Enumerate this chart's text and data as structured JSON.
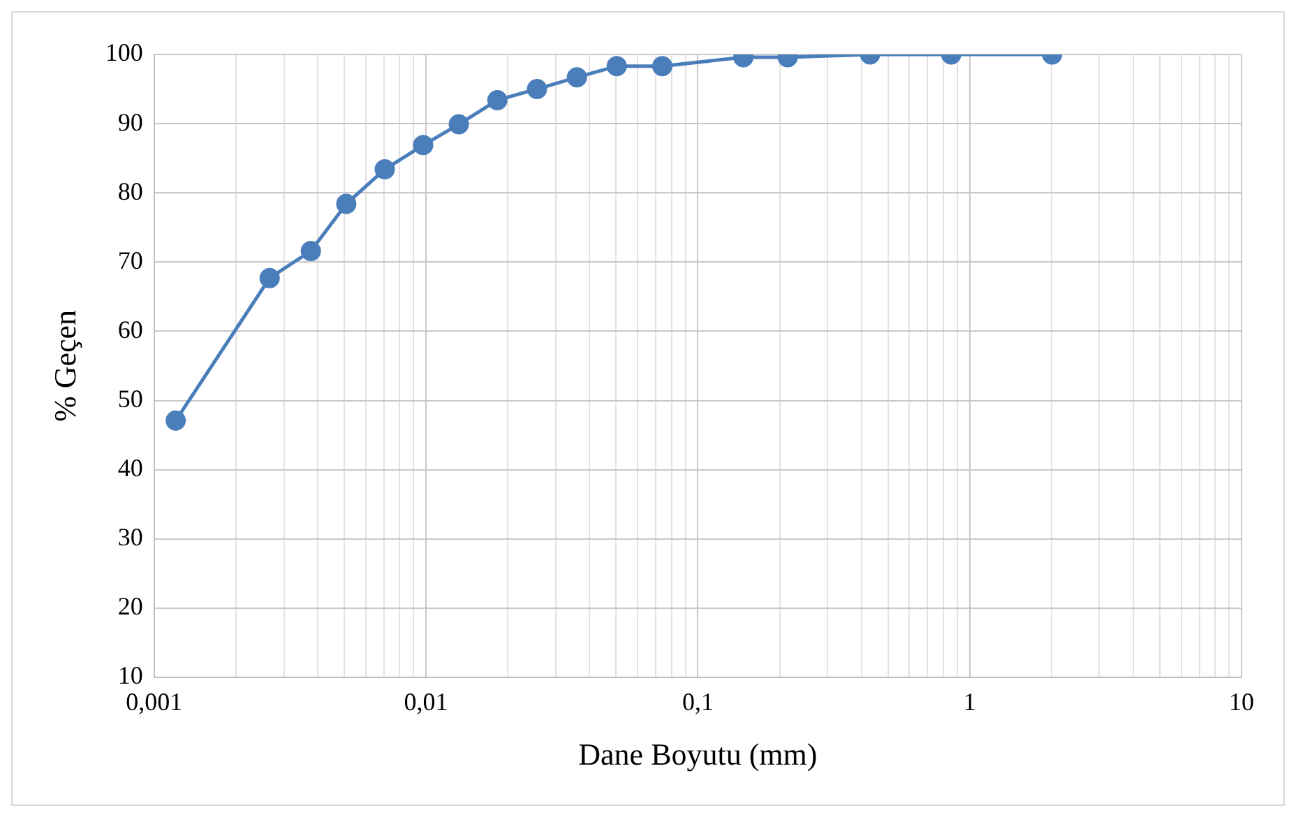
{
  "chart_data": {
    "type": "line",
    "xlabel": "Dane Boyutu (mm)",
    "ylabel": "% Geçen",
    "x": [
      0.0012,
      0.00266,
      0.00377,
      0.00509,
      0.00705,
      0.00976,
      0.0132,
      0.0183,
      0.0256,
      0.0359,
      0.0503,
      0.074,
      0.147,
      0.214,
      0.43,
      0.855,
      2.01
    ],
    "series": [
      {
        "color": "#4a7ebb",
        "values": [
          47.1,
          67.7,
          71.6,
          78.4,
          83.4,
          86.9,
          89.9,
          93.4,
          95.0,
          96.7,
          98.3,
          98.3,
          99.6,
          99.6,
          100,
          100,
          100
        ]
      }
    ],
    "log": "x",
    "xlim": [
      0.001,
      10
    ],
    "ylim": [
      10,
      100
    ],
    "xticks": [
      {
        "value": 0.001,
        "label": "0,001"
      },
      {
        "value": 0.002,
        "label": null
      },
      {
        "value": 0.003,
        "label": null
      },
      {
        "value": 0.004,
        "label": null
      },
      {
        "value": 0.005,
        "label": null
      },
      {
        "value": 0.006,
        "label": null
      },
      {
        "value": 0.007,
        "label": null
      },
      {
        "value": 0.008,
        "label": null
      },
      {
        "value": 0.009,
        "label": null
      },
      {
        "value": 0.01,
        "label": "0,01"
      },
      {
        "value": 0.02,
        "label": null
      },
      {
        "value": 0.03,
        "label": null
      },
      {
        "value": 0.04,
        "label": null
      },
      {
        "value": 0.05,
        "label": null
      },
      {
        "value": 0.06,
        "label": null
      },
      {
        "value": 0.07,
        "label": null
      },
      {
        "value": 0.08,
        "label": null
      },
      {
        "value": 0.09,
        "label": null
      },
      {
        "value": 0.1,
        "label": "0,1"
      },
      {
        "value": 0.2,
        "label": null
      },
      {
        "value": 0.3,
        "label": null
      },
      {
        "value": 0.4,
        "label": null
      },
      {
        "value": 0.5,
        "label": null
      },
      {
        "value": 0.6,
        "label": null
      },
      {
        "value": 0.7,
        "label": null
      },
      {
        "value": 0.8,
        "label": null
      },
      {
        "value": 0.9,
        "label": null
      },
      {
        "value": 1,
        "label": "1"
      },
      {
        "value": 2,
        "label": null
      },
      {
        "value": 3,
        "label": null
      },
      {
        "value": 4,
        "label": null
      },
      {
        "value": 5,
        "label": null
      },
      {
        "value": 6,
        "label": null
      },
      {
        "value": 7,
        "label": null
      },
      {
        "value": 8,
        "label": null
      },
      {
        "value": 9,
        "label": null
      },
      {
        "value": 10,
        "label": "10"
      }
    ],
    "yticks": [
      10,
      20,
      30,
      40,
      50,
      60,
      70,
      80,
      90,
      100
    ],
    "grid": true,
    "legend": false,
    "marker": "circle",
    "line_style": "solid"
  }
}
